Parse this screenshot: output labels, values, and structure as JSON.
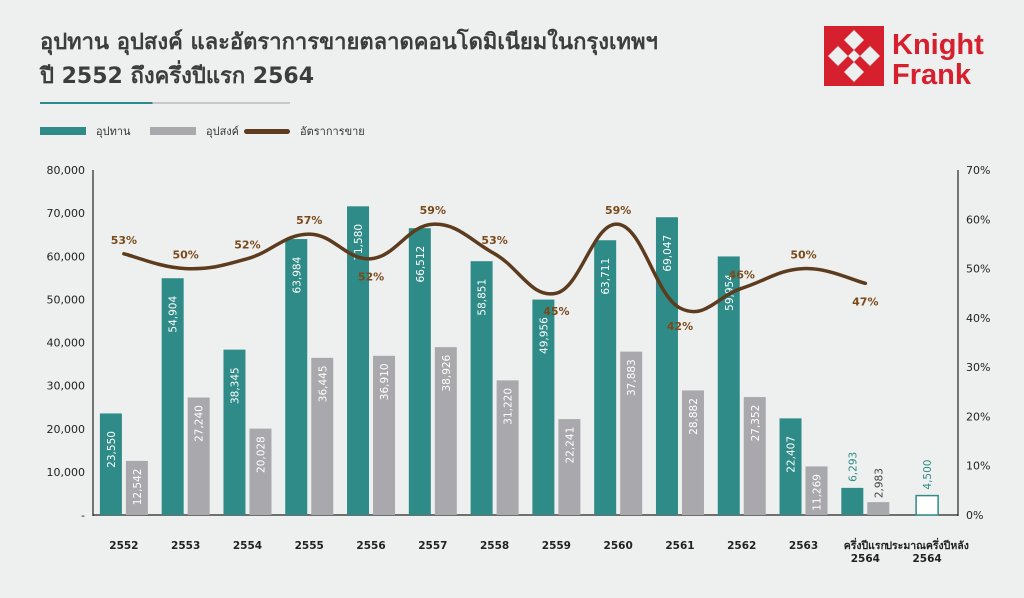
{
  "title": {
    "line1": "อุปทาน อุปสงค์ และอัตราการขายตลาดคอนโดมิเนียมในกรุงเทพฯ",
    "line2": "ปี 2552 ถึงครึ่งปีแรก 2564"
  },
  "logo": {
    "line1": "Knight",
    "line2": "Frank",
    "color": "#d6202e"
  },
  "colors": {
    "supply": "#2e8b87",
    "demand": "#a9a9ad",
    "rate": "#5c3b1e",
    "rate_label": "#7a4a1c",
    "estimate": "#2e8b87"
  },
  "chart_data": {
    "type": "bar",
    "categories": [
      "2552",
      "2553",
      "2554",
      "2555",
      "2556",
      "2557",
      "2558",
      "2559",
      "2560",
      "2561",
      "2562",
      "2563",
      "ครึ่งปีแรก\n2564",
      "ประมาณครึ่งปีหลัง\n2564"
    ],
    "series": [
      {
        "name": "อุปทาน",
        "type": "bar",
        "axis": "left",
        "values": [
          23550,
          54904,
          38345,
          63984,
          71580,
          66512,
          58851,
          49956,
          63711,
          69047,
          59954,
          22407,
          6293,
          null
        ],
        "labels": [
          "23,550",
          "54,904",
          "38,345",
          "63,984",
          "71,580",
          "66,512",
          "58,851",
          "49,956",
          "63,711",
          "69,047",
          "59,954",
          "22,407",
          "6,293",
          ""
        ]
      },
      {
        "name": "อุปสงค์",
        "type": "bar",
        "axis": "left",
        "values": [
          12542,
          27240,
          20028,
          36445,
          36910,
          38926,
          31220,
          22241,
          37883,
          28882,
          27352,
          11269,
          2983,
          null
        ],
        "labels": [
          "12,542",
          "27,240",
          "20,028",
          "36,445",
          "36,910",
          "38,926",
          "31,220",
          "22,241",
          "37,883",
          "28,882",
          "27,352",
          "11,269",
          "2,983",
          ""
        ]
      },
      {
        "name": "อัตราการขาย",
        "type": "line",
        "axis": "right",
        "values": [
          53,
          50,
          52,
          57,
          52,
          59,
          53,
          45,
          59,
          42,
          46,
          50,
          47,
          null
        ],
        "labels": [
          "53%",
          "50%",
          "52%",
          "57%",
          "52%",
          "59%",
          "53%",
          "45%",
          "59%",
          "42%",
          "46%",
          "50%",
          "47%",
          ""
        ]
      }
    ],
    "estimate": {
      "category_index": 13,
      "value": 4500,
      "label": "4,500"
    },
    "left_axis": {
      "ylim": [
        0,
        80000
      ],
      "ticks": [
        "-",
        "10,000",
        "20,000",
        "30,000",
        "40,000",
        "50,000",
        "60,000",
        "70,000",
        "80,000"
      ]
    },
    "right_axis": {
      "ylim": [
        0,
        70
      ],
      "ticks": [
        "0%",
        "10%",
        "20%",
        "30%",
        "40%",
        "50%",
        "60%",
        "70%"
      ]
    },
    "legend_position": "top-left",
    "grid": false
  }
}
